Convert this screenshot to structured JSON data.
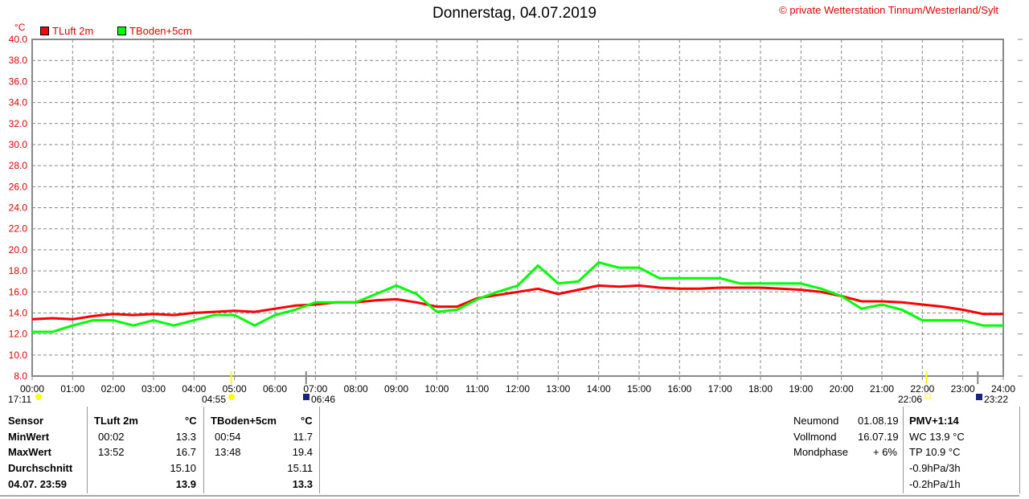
{
  "title": "Donnerstag, 04.07.2019",
  "credit": "© private Wetterstation Tinnum/Westerland/Sylt",
  "unit": "°C",
  "astro": {
    "moonset": "17:11",
    "sunrise": "04:55",
    "moonrise": "06:46",
    "sunset": "22:06",
    "moon2": "23:22"
  },
  "stats": {
    "headers": {
      "sensor": "Sensor",
      "s1": "TLuft 2m",
      "u1": "°C",
      "s2": "TBoden+5cm",
      "u2": "°C"
    },
    "rows": [
      {
        "label": "MinWert",
        "t1": "00:02",
        "v1": "13.3",
        "t2": "00:54",
        "v2": "11.7"
      },
      {
        "label": "MaxWert",
        "t1": "13:52",
        "v1": "16.7",
        "t2": "13:48",
        "v2": "19.4"
      },
      {
        "label": "Durchschnitt",
        "t1": "",
        "v1": "15.10",
        "t2": "",
        "v2": "15.11"
      },
      {
        "label": "04.07. 23:59",
        "t1": "",
        "v1": "13.9",
        "t2": "",
        "v2": "13.3"
      }
    ]
  },
  "moon": [
    {
      "label": "Neumond",
      "value": "01.08.19"
    },
    {
      "label": "Vollmond",
      "value": "16.07.19"
    },
    {
      "label": "Mondphase",
      "value": "+ 6%"
    }
  ],
  "extra": {
    "pmv": "PMV+1:14",
    "wc": "WC 13.9 °C",
    "tp": "TP 10.9 °C",
    "p3": "-0.9hPa/3h",
    "p1": "-0.2hPa/1h"
  },
  "chart_data": {
    "type": "line",
    "title": "Donnerstag, 04.07.2019",
    "ylabel": "°C",
    "xlabel": "",
    "ylim": [
      8,
      40
    ],
    "xlim": [
      0,
      24
    ],
    "grid": true,
    "legend": "top-left",
    "yticks": [
      "8.0",
      "10.0",
      "12.0",
      "14.0",
      "16.0",
      "18.0",
      "20.0",
      "22.0",
      "24.0",
      "26.0",
      "28.0",
      "30.0",
      "32.0",
      "34.0",
      "36.0",
      "38.0",
      "40.0"
    ],
    "xticks": [
      "00:00",
      "01:00",
      "02:00",
      "03:00",
      "04:00",
      "05:00",
      "06:00",
      "07:00",
      "08:00",
      "09:00",
      "10:00",
      "11:00",
      "12:00",
      "13:00",
      "14:00",
      "15:00",
      "16:00",
      "17:00",
      "18:00",
      "19:00",
      "20:00",
      "21:00",
      "22:00",
      "23:00",
      "24:00"
    ],
    "series": [
      {
        "name": "TLuft 2m",
        "color": "#ff0000",
        "x_step_hours": 0.5,
        "values": [
          13.4,
          13.5,
          13.4,
          13.7,
          13.9,
          13.8,
          13.9,
          13.8,
          14.0,
          14.1,
          14.2,
          14.1,
          14.4,
          14.7,
          14.8,
          15.0,
          15.0,
          15.2,
          15.3,
          15.0,
          14.6,
          14.6,
          15.4,
          15.7,
          16.0,
          16.3,
          15.8,
          16.2,
          16.6,
          16.5,
          16.6,
          16.4,
          16.3,
          16.3,
          16.4,
          16.4,
          16.4,
          16.3,
          16.2,
          16.0,
          15.6,
          15.1,
          15.1,
          15.0,
          14.8,
          14.6,
          14.3,
          13.9,
          13.9
        ]
      },
      {
        "name": "TBoden+5cm",
        "color": "#00ff00",
        "x_step_hours": 0.5,
        "values": [
          12.2,
          12.2,
          12.8,
          13.3,
          13.3,
          12.8,
          13.3,
          12.8,
          13.3,
          13.8,
          13.8,
          12.8,
          13.8,
          14.3,
          15.0,
          15.0,
          15.0,
          15.8,
          16.6,
          15.8,
          14.1,
          14.3,
          15.3,
          16.0,
          16.6,
          18.5,
          16.8,
          17.0,
          18.8,
          18.3,
          18.3,
          17.3,
          17.3,
          17.3,
          17.3,
          16.8,
          16.8,
          16.8,
          16.8,
          16.3,
          15.6,
          14.4,
          14.8,
          14.3,
          13.3,
          13.3,
          13.3,
          12.8,
          12.8
        ]
      }
    ]
  }
}
